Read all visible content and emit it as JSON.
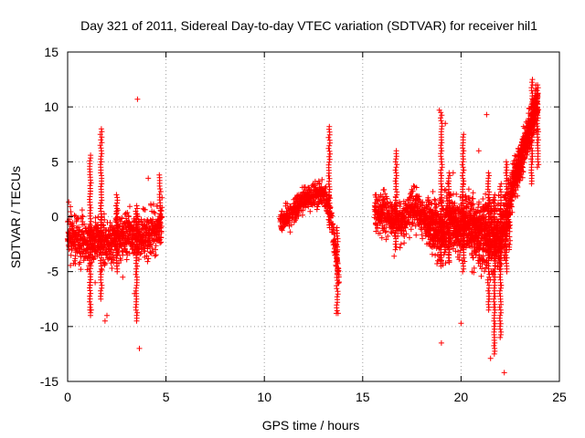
{
  "colors": {
    "series": "#ff0000",
    "axis": "#000000",
    "grid": "#a0a0a0",
    "background": "#ffffff"
  },
  "chart_data": {
    "type": "scatter",
    "title": "Day 321 of 2011, Sidereal Day-to-day VTEC variation (SDTVAR) for receiver hil1",
    "xlabel": "GPS time / hours",
    "ylabel": "SDTVAR / TECUs",
    "xlim": [
      0,
      25
    ],
    "ylim": [
      -15,
      15
    ],
    "xticks": [
      0,
      5,
      10,
      15,
      20,
      25
    ],
    "yticks": [
      -15,
      -10,
      -5,
      0,
      5,
      10,
      15
    ],
    "grid": true,
    "marker": "+",
    "series": [
      {
        "name": "SDTVAR",
        "segments": [
          {
            "x_start": 0.0,
            "x_end": 4.8,
            "y_center": [
              [
                0.0,
                -1.5
              ],
              [
                0.5,
                -2.0
              ],
              [
                1.0,
                -2.5
              ],
              [
                1.5,
                -2.0
              ],
              [
                2.0,
                -2.3
              ],
              [
                2.5,
                -2.0
              ],
              [
                3.0,
                -1.5
              ],
              [
                3.5,
                -2.0
              ],
              [
                4.0,
                -1.8
              ],
              [
                4.5,
                -1.0
              ],
              [
                4.8,
                0.0
              ]
            ],
            "spread": 1.8,
            "count": 900
          },
          {
            "x_start": 10.8,
            "x_end": 13.8,
            "y_center": [
              [
                10.8,
                -0.5
              ],
              [
                11.5,
                0.5
              ],
              [
                12.0,
                1.5
              ],
              [
                12.5,
                2.0
              ],
              [
                13.0,
                2.2
              ],
              [
                13.3,
                1.0
              ],
              [
                13.6,
                -3.0
              ],
              [
                13.8,
                -5.0
              ]
            ],
            "spread": 1.0,
            "count": 450
          },
          {
            "x_start": 15.6,
            "x_end": 18.3,
            "y_center": [
              [
                15.6,
                0.5
              ],
              [
                16.5,
                0.0
              ],
              [
                17.0,
                -0.5
              ],
              [
                17.5,
                1.0
              ],
              [
                18.0,
                0.0
              ],
              [
                18.3,
                -0.5
              ]
            ],
            "spread": 1.5,
            "count": 500
          },
          {
            "x_start": 18.3,
            "x_end": 20.5,
            "y_center": [
              [
                18.3,
                -0.5
              ],
              [
                19.0,
                -1.0
              ],
              [
                19.5,
                -0.8
              ],
              [
                20.0,
                -1.0
              ],
              [
                20.5,
                -0.5
              ]
            ],
            "spread": 2.2,
            "count": 650
          },
          {
            "x_start": 20.5,
            "x_end": 22.5,
            "y_center": [
              [
                20.5,
                -1.0
              ],
              [
                21.0,
                -2.0
              ],
              [
                21.5,
                -1.5
              ],
              [
                22.0,
                -2.0
              ],
              [
                22.5,
                1.0
              ]
            ],
            "spread": 2.5,
            "count": 650
          },
          {
            "x_start": 22.5,
            "x_end": 23.9,
            "y_center": [
              [
                22.5,
                2.0
              ],
              [
                23.0,
                5.0
              ],
              [
                23.5,
                8.0
              ],
              [
                23.9,
                10.5
              ]
            ],
            "spread": 1.5,
            "count": 500
          }
        ],
        "spikes": [
          {
            "x": 1.15,
            "y_min": -9.0,
            "y_max": 5.6
          },
          {
            "x": 1.7,
            "y_min": -7.5,
            "y_max": 8.0
          },
          {
            "x": 2.5,
            "y_min": -5.0,
            "y_max": 2.0
          },
          {
            "x": 3.5,
            "y_min": -9.5,
            "y_max": 1.0
          },
          {
            "x": 4.7,
            "y_min": -1.0,
            "y_max": 3.8
          },
          {
            "x": 13.3,
            "y_min": -1.0,
            "y_max": 8.2
          },
          {
            "x": 13.7,
            "y_min": -8.8,
            "y_max": -1.0
          },
          {
            "x": 16.7,
            "y_min": -3.0,
            "y_max": 6.0
          },
          {
            "x": 19.0,
            "y_min": -4.5,
            "y_max": 9.5
          },
          {
            "x": 19.4,
            "y_min": -4.0,
            "y_max": 4.0
          },
          {
            "x": 20.1,
            "y_min": -5.0,
            "y_max": 7.5
          },
          {
            "x": 21.4,
            "y_min": -8.5,
            "y_max": 4.0
          },
          {
            "x": 21.7,
            "y_min": -12.5,
            "y_max": 2.0
          },
          {
            "x": 22.0,
            "y_min": -11.0,
            "y_max": 3.0
          },
          {
            "x": 22.3,
            "y_min": -5.0,
            "y_max": 5.0
          },
          {
            "x": 23.6,
            "y_min": 3.0,
            "y_max": 12.5
          },
          {
            "x": 23.9,
            "y_min": 4.5,
            "y_max": 12.0
          }
        ],
        "outliers": [
          [
            3.55,
            10.7
          ],
          [
            3.65,
            -12.0
          ],
          [
            1.9,
            -9.5
          ],
          [
            2.0,
            -9.0
          ],
          [
            1.2,
            -8.5
          ],
          [
            3.4,
            -7.0
          ],
          [
            1.4,
            -6.0
          ],
          [
            19.0,
            -11.5
          ],
          [
            20.0,
            -9.7
          ],
          [
            21.3,
            9.3
          ],
          [
            21.5,
            -12.9
          ],
          [
            22.2,
            -14.2
          ],
          [
            13.75,
            -8.8
          ],
          [
            18.9,
            9.7
          ],
          [
            19.2,
            8.5
          ],
          [
            19.6,
            4.0
          ],
          [
            16.6,
            -3.6
          ],
          [
            2.8,
            -5.5
          ],
          [
            4.1,
            3.5
          ],
          [
            20.9,
            6.0
          ]
        ]
      }
    ]
  }
}
